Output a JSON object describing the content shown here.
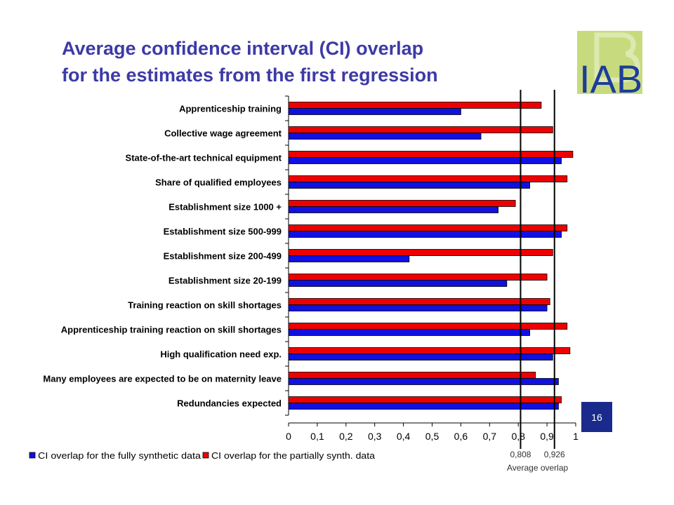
{
  "title": {
    "line1": "Average confidence interval (CI) overlap",
    "line2": "for the estimates from the first regression"
  },
  "logo": {
    "text": "IAB"
  },
  "page_number": "16",
  "colors": {
    "fully_synthetic": "#1010e0",
    "partially_synth": "#ee0000",
    "title": "#3d3aa7",
    "logo_green": "#c7db7e",
    "logo_blue": "#1d3d9a",
    "badge": "#1a2a8c"
  },
  "reference_lines": {
    "values": [
      0.808,
      0.926
    ],
    "labels": [
      "0,808",
      "0,926"
    ],
    "caption": "Average overlap"
  },
  "chart_data": {
    "type": "bar",
    "orientation": "horizontal",
    "categories": [
      "Apprenticeship training",
      "Collective wage agreement",
      "State-of-the-art technical equipment",
      "Share of qualified employees",
      "Establishment size 1000 +",
      "Establishment size 500-999",
      "Establishment size 200-499",
      "Establishment size 20-199",
      "Training reaction on skill shortages",
      "Apprenticeship training reaction on skill shortages",
      "High qualification need exp.",
      "Many employees are expected to be on maternity leave",
      "Redundancies expected"
    ],
    "series": [
      {
        "name": "CI overlap for the partially synth. data",
        "color": "#ee0000",
        "values": [
          0.88,
          0.92,
          0.99,
          0.97,
          0.79,
          0.97,
          0.92,
          0.9,
          0.91,
          0.97,
          0.98,
          0.86,
          0.95
        ]
      },
      {
        "name": "CI overlap for the fully synthetic data",
        "color": "#1010e0",
        "values": [
          0.6,
          0.67,
          0.95,
          0.84,
          0.73,
          0.95,
          0.42,
          0.76,
          0.9,
          0.84,
          0.92,
          0.94,
          0.94
        ]
      }
    ],
    "xlim": [
      0,
      1
    ],
    "xticks": [
      "0",
      "0,1",
      "0,2",
      "0,3",
      "0,4",
      "0,5",
      "0,6",
      "0,7",
      "0,8",
      "0,9",
      "1"
    ],
    "legend_order": [
      "CI overlap for the fully synthetic data",
      "CI overlap for the partially synth. data"
    ],
    "legend_position": "bottom"
  }
}
